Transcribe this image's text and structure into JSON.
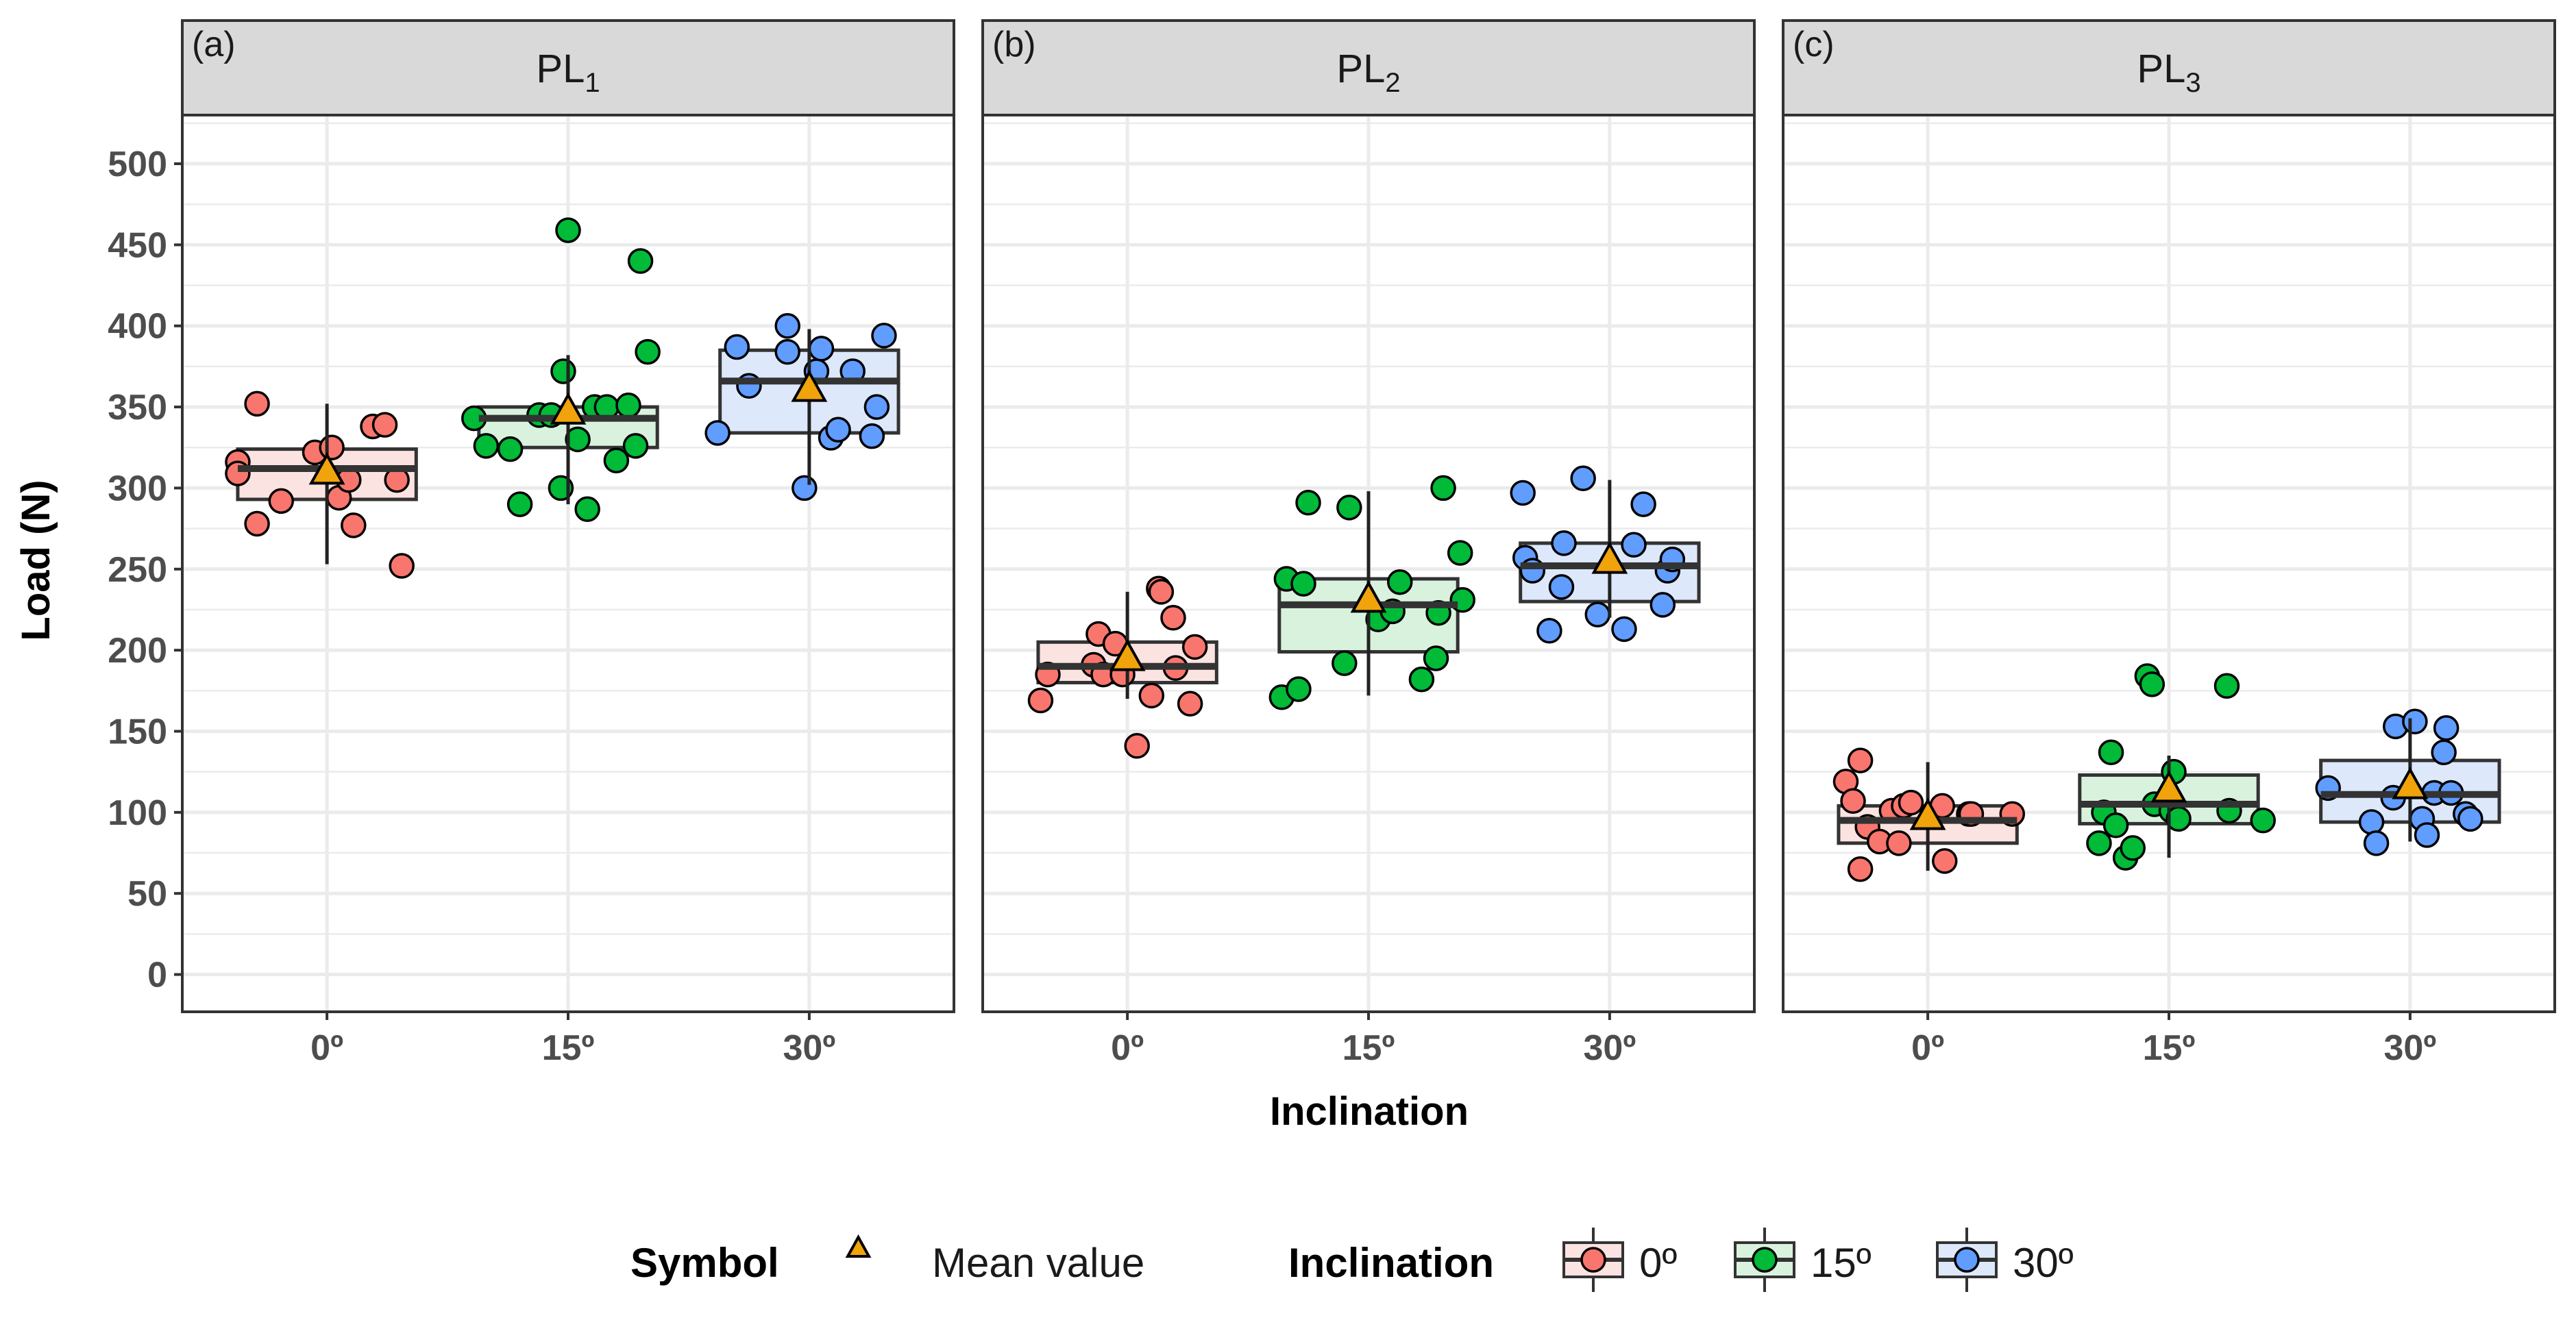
{
  "chart_data": {
    "type": "boxplot",
    "ylabel": "Load (N)",
    "xlabel": "Inclination",
    "ylim": [
      -23,
      530
    ],
    "yticks": [
      0,
      50,
      100,
      150,
      200,
      250,
      300,
      350,
      400,
      450,
      500
    ],
    "categories": [
      "0º",
      "15º",
      "30º"
    ],
    "colors": {
      "0º": {
        "fill": "#fbe3e1",
        "point": "#f8766d"
      },
      "15º": {
        "fill": "#d9f2de",
        "point": "#00ba38"
      },
      "30º": {
        "fill": "#dde8fb",
        "point": "#619cff"
      },
      "mean_marker": "#f0a30a",
      "outline": "#333333",
      "strip_fill": "#d9d9d9",
      "grid": "#ebebeb"
    },
    "legend": {
      "symbol_title": "Symbol",
      "mean_label": "Mean value",
      "inclination_title": "Inclination"
    },
    "panels": [
      {
        "tag": "(a)",
        "title_main": "PL",
        "title_sub": "1",
        "groups": [
          {
            "category": "0º",
            "q1": 293,
            "median": 312,
            "q3": 324,
            "whisker_low": 253,
            "whisker_high": 352,
            "mean": 311,
            "points": [
              {
                "jitter": -0.37,
                "value": 316
              },
              {
                "jitter": -0.37,
                "value": 309
              },
              {
                "jitter": -0.29,
                "value": 352
              },
              {
                "jitter": -0.29,
                "value": 278
              },
              {
                "jitter": -0.19,
                "value": 292
              },
              {
                "jitter": -0.05,
                "value": 322
              },
              {
                "jitter": 0.02,
                "value": 325
              },
              {
                "jitter": 0.05,
                "value": 294
              },
              {
                "jitter": 0.09,
                "value": 305
              },
              {
                "jitter": 0.11,
                "value": 277
              },
              {
                "jitter": 0.19,
                "value": 338
              },
              {
                "jitter": 0.24,
                "value": 339
              },
              {
                "jitter": 0.29,
                "value": 305
              },
              {
                "jitter": 0.31,
                "value": 252
              }
            ]
          },
          {
            "category": "15º",
            "q1": 325,
            "median": 343,
            "q3": 350,
            "whisker_low": 290,
            "whisker_high": 382,
            "mean": 348,
            "points": [
              {
                "jitter": -0.39,
                "value": 343
              },
              {
                "jitter": -0.34,
                "value": 326
              },
              {
                "jitter": -0.24,
                "value": 324
              },
              {
                "jitter": -0.2,
                "value": 290
              },
              {
                "jitter": -0.12,
                "value": 345
              },
              {
                "jitter": -0.07,
                "value": 345
              },
              {
                "jitter": -0.03,
                "value": 300
              },
              {
                "jitter": -0.02,
                "value": 372
              },
              {
                "jitter": 0.0,
                "value": 459
              },
              {
                "jitter": 0.04,
                "value": 330
              },
              {
                "jitter": 0.08,
                "value": 287
              },
              {
                "jitter": 0.11,
                "value": 350
              },
              {
                "jitter": 0.16,
                "value": 350
              },
              {
                "jitter": 0.2,
                "value": 317
              },
              {
                "jitter": 0.25,
                "value": 351
              },
              {
                "jitter": 0.28,
                "value": 326
              },
              {
                "jitter": 0.3,
                "value": 440
              },
              {
                "jitter": 0.33,
                "value": 384
              }
            ]
          },
          {
            "category": "30º",
            "q1": 334,
            "median": 366,
            "q3": 385,
            "whisker_low": 302,
            "whisker_high": 398,
            "mean": 362,
            "points": [
              {
                "jitter": -0.38,
                "value": 334
              },
              {
                "jitter": -0.3,
                "value": 387
              },
              {
                "jitter": -0.25,
                "value": 363
              },
              {
                "jitter": -0.09,
                "value": 400
              },
              {
                "jitter": -0.09,
                "value": 384
              },
              {
                "jitter": -0.02,
                "value": 300
              },
              {
                "jitter": 0.03,
                "value": 372
              },
              {
                "jitter": 0.05,
                "value": 386
              },
              {
                "jitter": 0.09,
                "value": 331
              },
              {
                "jitter": 0.12,
                "value": 336
              },
              {
                "jitter": 0.18,
                "value": 372
              },
              {
                "jitter": 0.26,
                "value": 332
              },
              {
                "jitter": 0.28,
                "value": 350
              },
              {
                "jitter": 0.31,
                "value": 394
              }
            ]
          }
        ]
      },
      {
        "tag": "(b)",
        "title_main": "PL",
        "title_sub": "2",
        "groups": [
          {
            "category": "0º",
            "q1": 180,
            "median": 190,
            "q3": 205,
            "whisker_low": 170,
            "whisker_high": 236,
            "mean": 196,
            "points": [
              {
                "jitter": -0.36,
                "value": 169
              },
              {
                "jitter": -0.33,
                "value": 185
              },
              {
                "jitter": -0.14,
                "value": 191
              },
              {
                "jitter": -0.12,
                "value": 210
              },
              {
                "jitter": -0.1,
                "value": 185
              },
              {
                "jitter": -0.05,
                "value": 204
              },
              {
                "jitter": -0.02,
                "value": 185
              },
              {
                "jitter": 0.04,
                "value": 141
              },
              {
                "jitter": 0.1,
                "value": 172
              },
              {
                "jitter": 0.13,
                "value": 238
              },
              {
                "jitter": 0.14,
                "value": 236
              },
              {
                "jitter": 0.19,
                "value": 220
              },
              {
                "jitter": 0.2,
                "value": 189
              },
              {
                "jitter": 0.26,
                "value": 167
              },
              {
                "jitter": 0.28,
                "value": 202
              }
            ]
          },
          {
            "category": "15º",
            "q1": 199,
            "median": 228,
            "q3": 244,
            "whisker_low": 172,
            "whisker_high": 298,
            "mean": 232,
            "points": [
              {
                "jitter": -0.36,
                "value": 171
              },
              {
                "jitter": -0.34,
                "value": 244
              },
              {
                "jitter": -0.29,
                "value": 176
              },
              {
                "jitter": -0.27,
                "value": 241
              },
              {
                "jitter": -0.25,
                "value": 291
              },
              {
                "jitter": -0.1,
                "value": 192
              },
              {
                "jitter": -0.08,
                "value": 288
              },
              {
                "jitter": 0.04,
                "value": 219
              },
              {
                "jitter": 0.1,
                "value": 224
              },
              {
                "jitter": 0.13,
                "value": 242
              },
              {
                "jitter": 0.22,
                "value": 182
              },
              {
                "jitter": 0.28,
                "value": 195
              },
              {
                "jitter": 0.29,
                "value": 223
              },
              {
                "jitter": 0.31,
                "value": 300
              },
              {
                "jitter": 0.38,
                "value": 260
              },
              {
                "jitter": 0.39,
                "value": 231
              }
            ]
          },
          {
            "category": "30º",
            "q1": 230,
            "median": 252,
            "q3": 266,
            "whisker_low": 220,
            "whisker_high": 305,
            "mean": 256,
            "points": [
              {
                "jitter": -0.36,
                "value": 297
              },
              {
                "jitter": -0.35,
                "value": 257
              },
              {
                "jitter": -0.32,
                "value": 249
              },
              {
                "jitter": -0.25,
                "value": 212
              },
              {
                "jitter": -0.2,
                "value": 239
              },
              {
                "jitter": -0.19,
                "value": 266
              },
              {
                "jitter": -0.11,
                "value": 306
              },
              {
                "jitter": -0.05,
                "value": 222
              },
              {
                "jitter": 0.06,
                "value": 213
              },
              {
                "jitter": 0.1,
                "value": 265
              },
              {
                "jitter": 0.14,
                "value": 290
              },
              {
                "jitter": 0.22,
                "value": 228
              },
              {
                "jitter": 0.24,
                "value": 249
              },
              {
                "jitter": 0.26,
                "value": 256
              }
            ]
          }
        ]
      },
      {
        "tag": "(c)",
        "title_main": "PL",
        "title_sub": "3",
        "groups": [
          {
            "category": "0º",
            "q1": 81,
            "median": 95,
            "q3": 104,
            "whisker_low": 64,
            "whisker_high": 131,
            "mean": 98,
            "points": [
              {
                "jitter": -0.34,
                "value": 119
              },
              {
                "jitter": -0.31,
                "value": 107
              },
              {
                "jitter": -0.28,
                "value": 132
              },
              {
                "jitter": -0.28,
                "value": 65
              },
              {
                "jitter": -0.25,
                "value": 91
              },
              {
                "jitter": -0.2,
                "value": 82
              },
              {
                "jitter": -0.15,
                "value": 101
              },
              {
                "jitter": -0.12,
                "value": 81
              },
              {
                "jitter": -0.1,
                "value": 104
              },
              {
                "jitter": -0.07,
                "value": 106
              },
              {
                "jitter": 0.06,
                "value": 104
              },
              {
                "jitter": 0.07,
                "value": 70
              },
              {
                "jitter": 0.17,
                "value": 99
              },
              {
                "jitter": 0.18,
                "value": 99
              },
              {
                "jitter": 0.35,
                "value": 99
              }
            ]
          },
          {
            "category": "15º",
            "q1": 93,
            "median": 105,
            "q3": 123,
            "whisker_low": 72,
            "whisker_high": 135,
            "mean": 115,
            "points": [
              {
                "jitter": -0.29,
                "value": 81
              },
              {
                "jitter": -0.27,
                "value": 100
              },
              {
                "jitter": -0.24,
                "value": 137
              },
              {
                "jitter": -0.22,
                "value": 92
              },
              {
                "jitter": -0.18,
                "value": 72
              },
              {
                "jitter": -0.15,
                "value": 78
              },
              {
                "jitter": -0.09,
                "value": 184
              },
              {
                "jitter": -0.07,
                "value": 179
              },
              {
                "jitter": -0.06,
                "value": 105
              },
              {
                "jitter": 0.01,
                "value": 101
              },
              {
                "jitter": 0.02,
                "value": 125
              },
              {
                "jitter": 0.04,
                "value": 96
              },
              {
                "jitter": 0.24,
                "value": 178
              },
              {
                "jitter": 0.25,
                "value": 101
              },
              {
                "jitter": 0.39,
                "value": 95
              }
            ]
          },
          {
            "category": "30º",
            "q1": 94,
            "median": 111,
            "q3": 132,
            "whisker_low": 82,
            "whisker_high": 158,
            "mean": 117,
            "points": [
              {
                "jitter": -0.34,
                "value": 115
              },
              {
                "jitter": -0.16,
                "value": 94
              },
              {
                "jitter": -0.14,
                "value": 81
              },
              {
                "jitter": -0.07,
                "value": 109
              },
              {
                "jitter": -0.06,
                "value": 153
              },
              {
                "jitter": 0.02,
                "value": 156
              },
              {
                "jitter": 0.05,
                "value": 96
              },
              {
                "jitter": 0.07,
                "value": 86
              },
              {
                "jitter": 0.1,
                "value": 112
              },
              {
                "jitter": 0.14,
                "value": 137
              },
              {
                "jitter": 0.15,
                "value": 152
              },
              {
                "jitter": 0.17,
                "value": 112
              },
              {
                "jitter": 0.23,
                "value": 99
              },
              {
                "jitter": 0.25,
                "value": 96
              }
            ]
          }
        ]
      }
    ]
  }
}
